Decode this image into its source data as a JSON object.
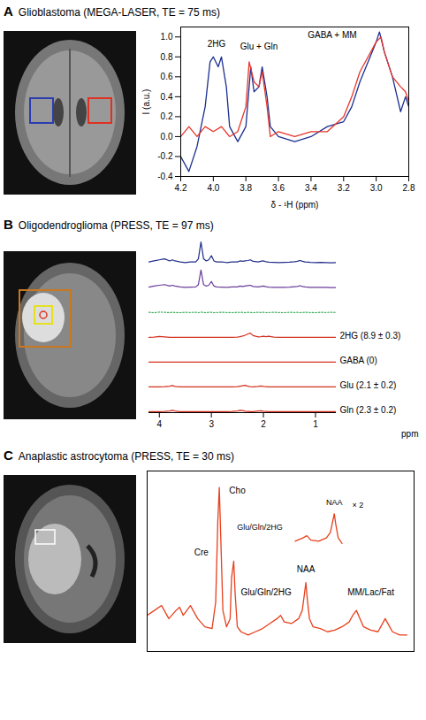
{
  "chart_data": [
    {
      "panel": "A",
      "type": "line",
      "title": "Glioblastoma (MEGA-LASER, TE = 75 ms)",
      "xlabel": "δ - ¹H (ppm)",
      "ylabel": "I (a.u.)",
      "xlim": [
        4.2,
        2.8
      ],
      "xticks": [
        4.2,
        {
          "value": 4,
          "label": "4.0"
        },
        3.8,
        3.6,
        3.4,
        3.2,
        {
          "value": 3,
          "label": "3.0"
        },
        2.8
      ],
      "ylim": [
        -0.4,
        1.1
      ],
      "yticks": [
        -0.4,
        -0.2,
        {
          "value": 0,
          "label": "0.0"
        },
        0.2,
        0.4,
        0.6,
        0.8,
        {
          "value": 1,
          "label": "1.0"
        }
      ],
      "series": [
        {
          "color": "#1c2f8f",
          "x": [
            4.2,
            4.15,
            4.1,
            4.05,
            4.02,
            4.0,
            3.97,
            3.95,
            3.92,
            3.9,
            3.85,
            3.8,
            3.77,
            3.75,
            3.72,
            3.7,
            3.67,
            3.65,
            3.6,
            3.5,
            3.4,
            3.3,
            3.2,
            3.15,
            3.1,
            3.05,
            3.0,
            2.98,
            2.95,
            2.9,
            2.85,
            2.82,
            2.8
          ],
          "values": [
            -0.2,
            -0.35,
            -0.1,
            0.3,
            0.75,
            0.8,
            0.7,
            0.8,
            0.5,
            0.1,
            -0.05,
            0.1,
            0.7,
            0.45,
            0.5,
            0.7,
            0.4,
            0.1,
            0.0,
            -0.05,
            0.0,
            0.1,
            0.15,
            0.3,
            0.55,
            0.75,
            0.95,
            1.05,
            0.85,
            0.6,
            0.25,
            0.4,
            0.3
          ]
        },
        {
          "color": "#e8352b",
          "x": [
            4.2,
            4.15,
            4.1,
            4.05,
            4.0,
            3.95,
            3.9,
            3.85,
            3.8,
            3.78,
            3.75,
            3.72,
            3.7,
            3.67,
            3.65,
            3.6,
            3.5,
            3.4,
            3.3,
            3.2,
            3.15,
            3.1,
            3.05,
            3.0,
            2.97,
            2.95,
            2.9,
            2.85,
            2.82,
            2.8
          ],
          "values": [
            0.0,
            0.1,
            0.0,
            0.1,
            0.05,
            0.1,
            0.0,
            0.05,
            0.3,
            0.75,
            0.55,
            0.5,
            0.65,
            0.3,
            0.0,
            0.05,
            0.0,
            0.05,
            0.05,
            0.2,
            0.4,
            0.65,
            0.8,
            0.95,
            1.0,
            0.85,
            0.6,
            0.5,
            0.45,
            0.35
          ]
        }
      ],
      "annotations": [
        {
          "text": "2HG",
          "x": 3.98,
          "y": 0.93
        },
        {
          "text": "Glu + Gln",
          "x": 3.72,
          "y": 0.9
        },
        {
          "text": "GABA + MM",
          "x": 3.27,
          "y": 1.02
        }
      ]
    },
    {
      "panel": "B",
      "type": "ridgeline",
      "title": "Oligodendroglioma (PRESS, TE = 97 ms)",
      "xlabel": "ppm",
      "tick_labels": "x",
      "xlim": [
        4.2,
        0.6
      ],
      "xticks": [
        4,
        3,
        2,
        1
      ],
      "ylim": [
        -0.05,
        1.05
      ],
      "x": [
        4.2,
        4.1,
        4.0,
        3.9,
        3.8,
        3.75,
        3.7,
        3.6,
        3.5,
        3.4,
        3.3,
        3.25,
        3.2,
        3.15,
        3.1,
        3.05,
        3.0,
        2.95,
        2.9,
        2.8,
        2.7,
        2.6,
        2.5,
        2.45,
        2.4,
        2.35,
        2.3,
        2.25,
        2.2,
        2.1,
        2.05,
        2.0,
        1.95,
        1.9,
        1.8,
        1.7,
        1.6,
        1.5,
        1.4,
        1.35,
        1.3,
        1.25,
        1.2,
        1.1,
        1.0,
        0.9,
        0.8,
        0.7,
        0.6
      ],
      "series": [
        {
          "color": "#1f2d8a",
          "values": [
            0.05,
            0.1,
            0.15,
            0.2,
            0.1,
            0.15,
            0.1,
            0.05,
            0.02,
            0.05,
            0.05,
            0.2,
            1.0,
            0.2,
            0.1,
            0.15,
            0.35,
            0.1,
            0.05,
            0.05,
            0.02,
            0.05,
            0.05,
            0.1,
            0.08,
            0.1,
            0.12,
            0.15,
            0.08,
            0.05,
            0.08,
            0.1,
            0.06,
            0.04,
            0.03,
            0.02,
            0.03,
            0.04,
            0.06,
            0.08,
            0.12,
            0.08,
            0.05,
            0.03,
            0.02,
            0.03,
            0.02,
            0.01,
            0.02
          ]
        },
        {
          "color": "#6a3d9a",
          "values": [
            0.03,
            0.08,
            0.12,
            0.15,
            0.08,
            0.12,
            0.08,
            0.04,
            0.02,
            0.03,
            0.04,
            0.15,
            0.85,
            0.15,
            0.08,
            0.12,
            0.3,
            0.08,
            0.04,
            0.03,
            0.02,
            0.04,
            0.04,
            0.08,
            0.06,
            0.08,
            0.1,
            0.12,
            0.06,
            0.04,
            0.06,
            0.08,
            0.05,
            0.03,
            0.02,
            0.02,
            0.02,
            0.03,
            0.05,
            0.06,
            0.1,
            0.06,
            0.04,
            0.02,
            0.02,
            0.02,
            0.02,
            0.01,
            0.01
          ]
        },
        {
          "color": "#33aa55",
          "line_style": "dotted",
          "values": [
            0.01,
            -0.01,
            0.02,
            0.01,
            -0.01,
            0.01,
            0.0,
            -0.01,
            0.01,
            0.0,
            0.01,
            -0.01,
            0.02,
            0.0,
            -0.01,
            0.01,
            0.01,
            -0.01,
            0.0,
            0.01,
            0.0,
            -0.01,
            0.01,
            0.0,
            0.01,
            -0.01,
            0.01,
            0.0,
            -0.01,
            0.01,
            0.0,
            0.01,
            -0.01,
            0.0,
            0.01,
            0.0,
            -0.01,
            0.01,
            0.0,
            0.01,
            -0.01,
            0.0,
            0.01,
            0.0,
            -0.01,
            0.01,
            0.0,
            0.01,
            0.0
          ]
        },
        {
          "name": "2HG (8.9 ± 0.3)",
          "color": "#d4301f",
          "values": [
            0,
            0.01,
            0.04,
            0.02,
            0,
            0,
            0,
            0,
            0,
            0,
            0,
            0,
            0,
            0,
            0,
            0,
            0,
            0,
            0,
            0,
            0,
            0,
            0.01,
            0.03,
            0.06,
            0.1,
            0.16,
            0.2,
            0.08,
            0.02,
            0.03,
            0.05,
            0.03,
            0.05,
            0.01,
            0,
            0,
            0,
            0,
            0,
            0,
            0,
            0,
            0,
            0,
            0,
            0,
            0,
            0
          ]
        },
        {
          "name": "GABA (0)",
          "color": "#d4301f",
          "values": [
            0,
            0,
            0,
            0,
            0,
            0,
            0,
            0,
            0,
            0,
            0,
            0,
            0,
            0,
            0,
            0,
            0,
            0,
            0,
            0,
            0,
            0,
            0,
            0,
            0,
            0,
            0,
            0,
            0,
            0,
            0,
            0,
            0,
            0,
            0,
            0,
            0,
            0,
            0,
            0,
            0,
            0,
            0,
            0,
            0,
            0,
            0,
            0,
            0
          ]
        },
        {
          "name": "Glu (2.1 ± 0.2)",
          "color": "#d4301f",
          "values": [
            0,
            0,
            0,
            0.01,
            0.03,
            0.06,
            0.02,
            0,
            0,
            0,
            0,
            0,
            0,
            0,
            0,
            0,
            0,
            0,
            0,
            0,
            0,
            0,
            0.01,
            0.03,
            0.05,
            0.07,
            0.03,
            0.01,
            0,
            0.02,
            0.04,
            0.02,
            0.01,
            0,
            0,
            0,
            0,
            0,
            0,
            0,
            0,
            0,
            0,
            0,
            0,
            0,
            0,
            0,
            0
          ]
        },
        {
          "name": "Gln (2.3 ± 0.2)",
          "color": "#d4301f",
          "values": [
            0,
            0,
            0,
            0.01,
            0.03,
            0.06,
            0.03,
            0,
            0,
            0,
            0,
            0,
            0,
            0,
            0,
            0,
            0,
            0,
            0,
            0,
            0,
            0.01,
            0.03,
            0.06,
            0.05,
            0.02,
            0.01,
            0,
            0,
            0.03,
            0.04,
            0.02,
            0.01,
            0,
            0,
            0,
            0,
            0,
            0,
            0,
            0,
            0,
            0,
            0,
            0,
            0,
            0,
            0,
            0
          ]
        }
      ]
    },
    {
      "panel": "C",
      "type": "line",
      "title": "Anaplastic astrocytoma (PRESS, TE = 30 ms)",
      "tick_labels": false,
      "xlim": [
        4.2,
        0.5
      ],
      "ylim": [
        0,
        1.1
      ],
      "series": [
        {
          "color": "#e8401c",
          "x": [
            4.2,
            4.1,
            4.0,
            3.9,
            3.8,
            3.75,
            3.7,
            3.6,
            3.5,
            3.4,
            3.3,
            3.25,
            3.22,
            3.2,
            3.18,
            3.15,
            3.1,
            3.05,
            3.03,
            3.0,
            2.98,
            2.95,
            2.9,
            2.8,
            2.7,
            2.6,
            2.5,
            2.4,
            2.35,
            2.3,
            2.2,
            2.1,
            2.05,
            2.02,
            2.0,
            1.98,
            1.95,
            1.9,
            1.8,
            1.7,
            1.6,
            1.5,
            1.4,
            1.35,
            1.3,
            1.25,
            1.2,
            1.1,
            1.0,
            0.95,
            0.9,
            0.85,
            0.8,
            0.7,
            0.6
          ],
          "values": [
            0.22,
            0.25,
            0.28,
            0.2,
            0.25,
            0.27,
            0.22,
            0.28,
            0.2,
            0.15,
            0.14,
            0.3,
            0.8,
            1.0,
            0.7,
            0.25,
            0.15,
            0.2,
            0.45,
            0.55,
            0.35,
            0.15,
            0.12,
            0.1,
            0.12,
            0.14,
            0.17,
            0.2,
            0.22,
            0.18,
            0.17,
            0.2,
            0.25,
            0.35,
            0.42,
            0.32,
            0.2,
            0.15,
            0.14,
            0.12,
            0.13,
            0.15,
            0.18,
            0.22,
            0.25,
            0.2,
            0.15,
            0.13,
            0.12,
            0.16,
            0.2,
            0.16,
            0.12,
            0.1,
            0.1
          ]
        }
      ],
      "annotations": [
        {
          "text": "Cho",
          "x": 2.95,
          "y": 0.98
        },
        {
          "text": "Cre",
          "x": 3.45,
          "y": 0.6
        },
        {
          "text": "Glu/Gln/2HG",
          "x": 2.55,
          "y": 0.36
        },
        {
          "text": "NAA",
          "x": 2.0,
          "y": 0.5
        },
        {
          "text": "MM/Lac/Fat",
          "x": 1.1,
          "y": 0.36
        }
      ],
      "inset": {
        "xlim": [
          2.55,
          1.85
        ],
        "ylim": [
          0.1,
          0.6
        ],
        "series": [
          {
            "color": "#e8401c",
            "x": [
              2.5,
              2.4,
              2.35,
              2.3,
              2.2,
              2.1,
              2.05,
              2.02,
              2.0,
              1.98,
              1.95,
              1.9
            ],
            "values": [
              0.17,
              0.2,
              0.22,
              0.18,
              0.17,
              0.2,
              0.25,
              0.35,
              0.42,
              0.32,
              0.2,
              0.15
            ]
          }
        ],
        "annotations": [
          {
            "text": "Glu/Gln/2HG",
            "x": 2.95,
            "y": 0.3
          },
          {
            "text": "NAA",
            "x": 2.0,
            "y": 0.52
          },
          {
            "text": "× 2",
            "x": 1.7,
            "y": 0.5
          }
        ]
      }
    }
  ]
}
